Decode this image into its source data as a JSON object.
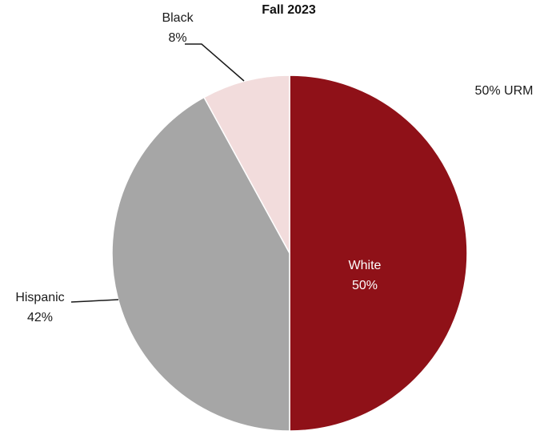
{
  "chart_data": {
    "type": "pie",
    "title": "Fall 2023",
    "annotation": "50% URM",
    "slices": [
      {
        "label": "White",
        "value": 50,
        "value_label": "50%",
        "color": "#8f1118"
      },
      {
        "label": "Hispanic",
        "value": 42,
        "value_label": "42%",
        "color": "#a6a6a6"
      },
      {
        "label": "Black",
        "value": 8,
        "value_label": "8%",
        "color": "#f2dcdc"
      }
    ],
    "legend": "none"
  }
}
